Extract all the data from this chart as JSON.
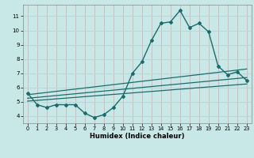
{
  "title": "",
  "xlabel": "Humidex (Indice chaleur)",
  "ylabel": "",
  "bg_color": "#c8e8e8",
  "line_color": "#1a6b6b",
  "grid_color_h": "#b8d8d8",
  "grid_color_v": "#d8b8b8",
  "xlim": [
    -0.5,
    23.5
  ],
  "ylim": [
    3.5,
    11.8
  ],
  "xticks": [
    0,
    1,
    2,
    3,
    4,
    5,
    6,
    7,
    8,
    9,
    10,
    11,
    12,
    13,
    14,
    15,
    16,
    17,
    18,
    19,
    20,
    21,
    22,
    23
  ],
  "yticks": [
    4,
    5,
    6,
    7,
    8,
    9,
    10,
    11
  ],
  "main_line_x": [
    0,
    1,
    2,
    3,
    4,
    5,
    6,
    7,
    8,
    9,
    10,
    11,
    12,
    13,
    14,
    15,
    16,
    17,
    18,
    19,
    20,
    21,
    22,
    23
  ],
  "main_line_y": [
    5.6,
    4.8,
    4.6,
    4.8,
    4.8,
    4.8,
    4.2,
    3.9,
    4.1,
    4.6,
    5.4,
    7.0,
    7.8,
    9.3,
    10.5,
    10.6,
    11.4,
    10.2,
    10.5,
    9.9,
    7.5,
    6.9,
    7.1,
    6.5
  ],
  "trend1_x": [
    0,
    23
  ],
  "trend1_y": [
    5.05,
    6.25
  ],
  "trend2_x": [
    0,
    23
  ],
  "trend2_y": [
    5.25,
    6.7
  ],
  "trend3_x": [
    0,
    23
  ],
  "trend3_y": [
    5.5,
    7.3
  ]
}
